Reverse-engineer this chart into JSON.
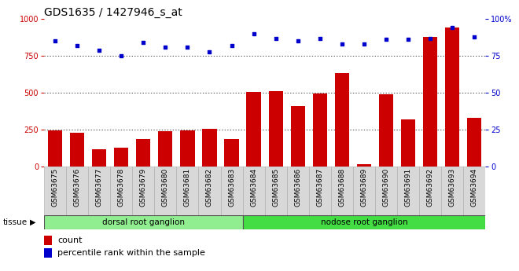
{
  "title": "GDS1635 / 1427946_s_at",
  "categories": [
    "GSM63675",
    "GSM63676",
    "GSM63677",
    "GSM63678",
    "GSM63679",
    "GSM63680",
    "GSM63681",
    "GSM63682",
    "GSM63683",
    "GSM63684",
    "GSM63685",
    "GSM63686",
    "GSM63687",
    "GSM63688",
    "GSM63689",
    "GSM63690",
    "GSM63691",
    "GSM63692",
    "GSM63693",
    "GSM63694"
  ],
  "counts": [
    248,
    230,
    120,
    130,
    185,
    240,
    248,
    255,
    185,
    505,
    510,
    410,
    495,
    635,
    15,
    490,
    320,
    880,
    940,
    330
  ],
  "percentiles": [
    85,
    82,
    79,
    75,
    84,
    81,
    81,
    78,
    82,
    90,
    87,
    85,
    87,
    83,
    83,
    86,
    86,
    87,
    94,
    88
  ],
  "bar_color": "#cc0000",
  "dot_color": "#0000cc",
  "ylim_left": [
    0,
    1000
  ],
  "ylim_right": [
    0,
    100
  ],
  "yticks_left": [
    0,
    250,
    500,
    750,
    1000
  ],
  "yticks_right": [
    0,
    25,
    50,
    75,
    100
  ],
  "grid_values": [
    250,
    500,
    750
  ],
  "tissue_groups": [
    {
      "label": "dorsal root ganglion",
      "start": 0,
      "end": 9,
      "color": "#90ee90"
    },
    {
      "label": "nodose root ganglion",
      "start": 9,
      "end": 20,
      "color": "#44dd44"
    }
  ],
  "tissue_label": "tissue",
  "legend_count_label": "count",
  "legend_pct_label": "percentile rank within the sample",
  "bg_color": "#ffffff",
  "plot_bg": "#ffffff",
  "left_axis_color": "#cc0000",
  "right_axis_color": "#0000cc",
  "title_fontsize": 10,
  "tick_fontsize": 6.5,
  "bar_width": 0.65
}
